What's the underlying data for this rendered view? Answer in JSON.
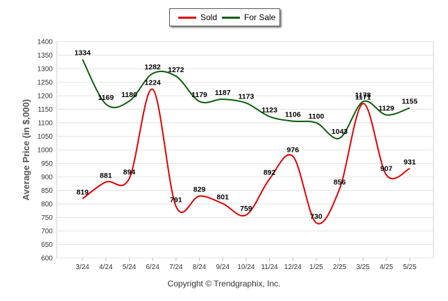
{
  "chart_data": {
    "type": "line",
    "categories": [
      "3/24",
      "4/24",
      "5/24",
      "6/24",
      "7/24",
      "8/24",
      "9/24",
      "10/24",
      "11/24",
      "12/24",
      "1/25",
      "2/25",
      "3/25",
      "4/25",
      "5/25"
    ],
    "series": [
      {
        "name": "Sold",
        "color": "#e00000",
        "values": [
          819,
          881,
          894,
          1224,
          791,
          829,
          801,
          759,
          892,
          976,
          730,
          856,
          1171,
          907,
          931
        ]
      },
      {
        "name": "For Sale",
        "color": "#0b5e0b",
        "values": [
          1334,
          1169,
          1180,
          1282,
          1272,
          1179,
          1187,
          1173,
          1123,
          1106,
          1100,
          1043,
          1178,
          1129,
          1155
        ]
      }
    ],
    "ylabel": "Average Price (in $,000)",
    "xlabel": "",
    "ylim": [
      600,
      1400
    ],
    "yticks": [
      600,
      650,
      700,
      750,
      800,
      850,
      900,
      950,
      1000,
      1050,
      1100,
      1150,
      1200,
      1250,
      1300,
      1350,
      1400
    ],
    "grid": true,
    "legend": "top-center",
    "smooth": true
  },
  "footer": {
    "text": "Copyright © Trendgraphix, Inc."
  }
}
